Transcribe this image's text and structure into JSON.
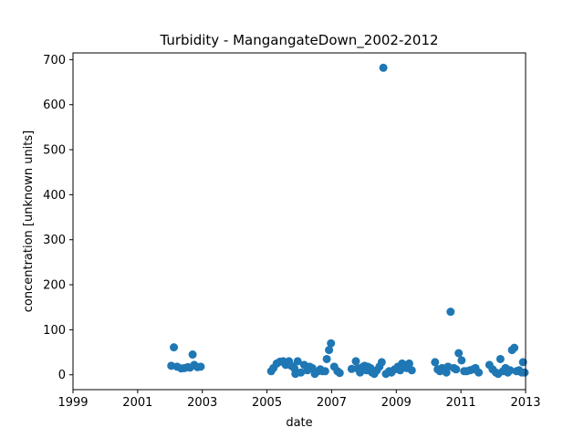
{
  "chart_data": {
    "type": "scatter",
    "title": "Turbidity - MangangateDown_2002-2012",
    "xlabel": "date",
    "ylabel": "concentration [unknown units]",
    "xlim": [
      1999.0,
      2013.0
    ],
    "ylim": [
      -33,
      715
    ],
    "x_ticks": [
      1999,
      2001,
      2003,
      2005,
      2007,
      2009,
      2011,
      2013
    ],
    "x_tick_labels": [
      "1999",
      "2001",
      "2003",
      "2005",
      "2007",
      "2009",
      "2011",
      "2013"
    ],
    "y_ticks": [
      0,
      100,
      200,
      300,
      400,
      500,
      600,
      700
    ],
    "y_tick_labels": [
      "0",
      "100",
      "200",
      "300",
      "400",
      "500",
      "600",
      "700"
    ],
    "grid": false,
    "legend": "none",
    "marker_color": "#1f77b4",
    "series": [
      {
        "points": [
          [
            2002.04,
            20
          ],
          [
            2002.12,
            61
          ],
          [
            2002.22,
            18
          ],
          [
            2002.35,
            14
          ],
          [
            2002.45,
            15
          ],
          [
            2002.55,
            17
          ],
          [
            2002.62,
            16
          ],
          [
            2002.7,
            45
          ],
          [
            2002.75,
            22
          ],
          [
            2002.85,
            17
          ],
          [
            2002.95,
            18
          ],
          [
            2005.13,
            8
          ],
          [
            2005.2,
            15
          ],
          [
            2005.3,
            25
          ],
          [
            2005.4,
            29
          ],
          [
            2005.5,
            30
          ],
          [
            2005.58,
            22
          ],
          [
            2005.68,
            30
          ],
          [
            2005.75,
            20
          ],
          [
            2005.85,
            14
          ],
          [
            2005.88,
            2
          ],
          [
            2005.95,
            30
          ],
          [
            2006.05,
            5
          ],
          [
            2006.15,
            22
          ],
          [
            2006.25,
            10
          ],
          [
            2006.32,
            18
          ],
          [
            2006.4,
            15
          ],
          [
            2006.48,
            2
          ],
          [
            2006.58,
            8
          ],
          [
            2006.65,
            12
          ],
          [
            2006.72,
            8
          ],
          [
            2006.8,
            8
          ],
          [
            2006.85,
            35
          ],
          [
            2006.92,
            55
          ],
          [
            2006.98,
            70
          ],
          [
            2007.08,
            18
          ],
          [
            2007.18,
            8
          ],
          [
            2007.25,
            4
          ],
          [
            2007.62,
            13
          ],
          [
            2007.75,
            30
          ],
          [
            2007.8,
            14
          ],
          [
            2007.88,
            5
          ],
          [
            2007.95,
            17
          ],
          [
            2008.02,
            20
          ],
          [
            2008.08,
            10
          ],
          [
            2008.12,
            18
          ],
          [
            2008.2,
            15
          ],
          [
            2008.25,
            5
          ],
          [
            2008.32,
            2
          ],
          [
            2008.4,
            10
          ],
          [
            2008.48,
            18
          ],
          [
            2008.55,
            28
          ],
          [
            2008.6,
            682
          ],
          [
            2008.68,
            2
          ],
          [
            2008.78,
            8
          ],
          [
            2008.85,
            5
          ],
          [
            2008.95,
            12
          ],
          [
            2009.05,
            18
          ],
          [
            2009.12,
            10
          ],
          [
            2009.18,
            25
          ],
          [
            2009.25,
            22
          ],
          [
            2009.32,
            15
          ],
          [
            2009.4,
            25
          ],
          [
            2009.48,
            10
          ],
          [
            2010.2,
            28
          ],
          [
            2010.28,
            12
          ],
          [
            2010.35,
            8
          ],
          [
            2010.42,
            15
          ],
          [
            2010.48,
            10
          ],
          [
            2010.55,
            5
          ],
          [
            2010.6,
            18
          ],
          [
            2010.68,
            140
          ],
          [
            2010.78,
            15
          ],
          [
            2010.85,
            12
          ],
          [
            2010.93,
            48
          ],
          [
            2011.02,
            32
          ],
          [
            2011.1,
            8
          ],
          [
            2011.18,
            8
          ],
          [
            2011.28,
            10
          ],
          [
            2011.38,
            12
          ],
          [
            2011.45,
            15
          ],
          [
            2011.55,
            5
          ],
          [
            2011.88,
            22
          ],
          [
            2011.98,
            12
          ],
          [
            2012.08,
            5
          ],
          [
            2012.15,
            2
          ],
          [
            2012.22,
            35
          ],
          [
            2012.3,
            8
          ],
          [
            2012.38,
            15
          ],
          [
            2012.45,
            5
          ],
          [
            2012.52,
            10
          ],
          [
            2012.58,
            55
          ],
          [
            2012.65,
            60
          ],
          [
            2012.72,
            8
          ],
          [
            2012.8,
            10
          ],
          [
            2012.88,
            5
          ],
          [
            2012.92,
            28
          ],
          [
            2012.97,
            5
          ]
        ]
      }
    ]
  }
}
